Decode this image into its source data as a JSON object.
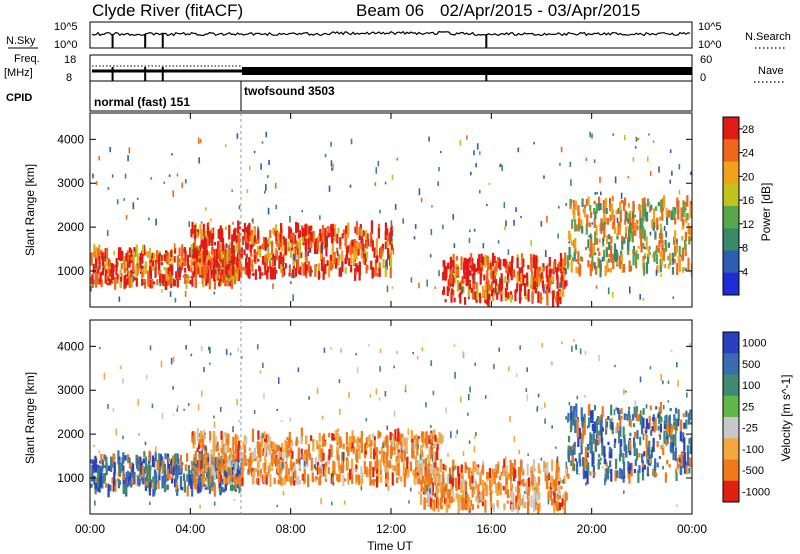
{
  "header": {
    "station": "Clyde River (fitACF)",
    "beam": "Beam 06",
    "date_range": "02/Apr/2015 - 03/Apr/2015"
  },
  "strips": {
    "nsky_label": "N.Sky",
    "nsky_ticks": [
      "10^5",
      "10^0"
    ],
    "nsearch_label": "N.Search",
    "nsearch_ticks": [
      "10^5",
      "10^0"
    ],
    "freq_label_top": "Freq.",
    "freq_label_bottom": "[MHz]",
    "freq_ticks": [
      "18",
      "8"
    ],
    "nave_label": "Nave",
    "nave_ticks": [
      "60",
      "0"
    ],
    "cpid_label": "CPID",
    "cpid_segments": [
      {
        "name": "normal (fast) 151",
        "start_hour": 0,
        "end_hour": 6
      },
      {
        "name": "twofsound 3503",
        "start_hour": 6,
        "end_hour": 24
      }
    ]
  },
  "chart_data": [
    {
      "type": "heatmap",
      "panel": "power",
      "xlabel": "Time UT",
      "ylabel": "Slant Range [km]",
      "x_ticks": [
        "00:00",
        "04:00",
        "08:00",
        "12:00",
        "16:00",
        "20:00",
        "00:00"
      ],
      "xlim_hours": [
        0,
        24
      ],
      "y_ticks": [
        1000,
        2000,
        3000,
        4000
      ],
      "ylim": [
        180,
        4600
      ],
      "colorbar": {
        "label": "Power [dB]",
        "ticks": [
          4,
          8,
          12,
          16,
          20,
          24,
          28
        ],
        "range": [
          0,
          30
        ],
        "colors": [
          "#1f2bd6",
          "#2c5fb0",
          "#3a8a6a",
          "#5aa64a",
          "#c2c21a",
          "#f0a21c",
          "#f0661a",
          "#e01a14"
        ]
      },
      "features": [
        {
          "hours": [
            0,
            6
          ],
          "range_km": [
            700,
            1500
          ],
          "level": "high"
        },
        {
          "hours": [
            4,
            12
          ],
          "range_km": [
            900,
            2000
          ],
          "level": "high"
        },
        {
          "hours": [
            14,
            19
          ],
          "range_km": [
            300,
            1300
          ],
          "level": "high"
        },
        {
          "hours": [
            19,
            24
          ],
          "range_km": [
            1000,
            2600
          ],
          "level": "medium"
        }
      ]
    },
    {
      "type": "heatmap",
      "panel": "velocity",
      "xlabel": "Time UT",
      "ylabel": "Slant Range [km]",
      "x_ticks": [
        "00:00",
        "04:00",
        "08:00",
        "12:00",
        "16:00",
        "20:00",
        "00:00"
      ],
      "xlim_hours": [
        0,
        24
      ],
      "y_ticks": [
        1000,
        2000,
        3000,
        4000
      ],
      "ylim": [
        180,
        4600
      ],
      "colorbar": {
        "label": "Velocity [m s^-1]",
        "tick_labels": [
          "1000",
          "500",
          "100",
          "25",
          "-25",
          "-100",
          "-500",
          "-1000"
        ],
        "colors": [
          "#2a3fbf",
          "#3a6cb0",
          "#3f8a70",
          "#60b848",
          "#c8c8c8",
          "#f2a840",
          "#f07a1a",
          "#e02010"
        ]
      },
      "features": [
        {
          "hours": [
            0,
            6
          ],
          "range_km": [
            700,
            1500
          ],
          "level": "toward"
        },
        {
          "hours": [
            4,
            14
          ],
          "range_km": [
            900,
            2000
          ],
          "level": "away"
        },
        {
          "hours": [
            13,
            19
          ],
          "range_km": [
            300,
            1300
          ],
          "level": "away"
        },
        {
          "hours": [
            19,
            24
          ],
          "range_km": [
            1000,
            2600
          ],
          "level": "toward"
        }
      ]
    }
  ]
}
